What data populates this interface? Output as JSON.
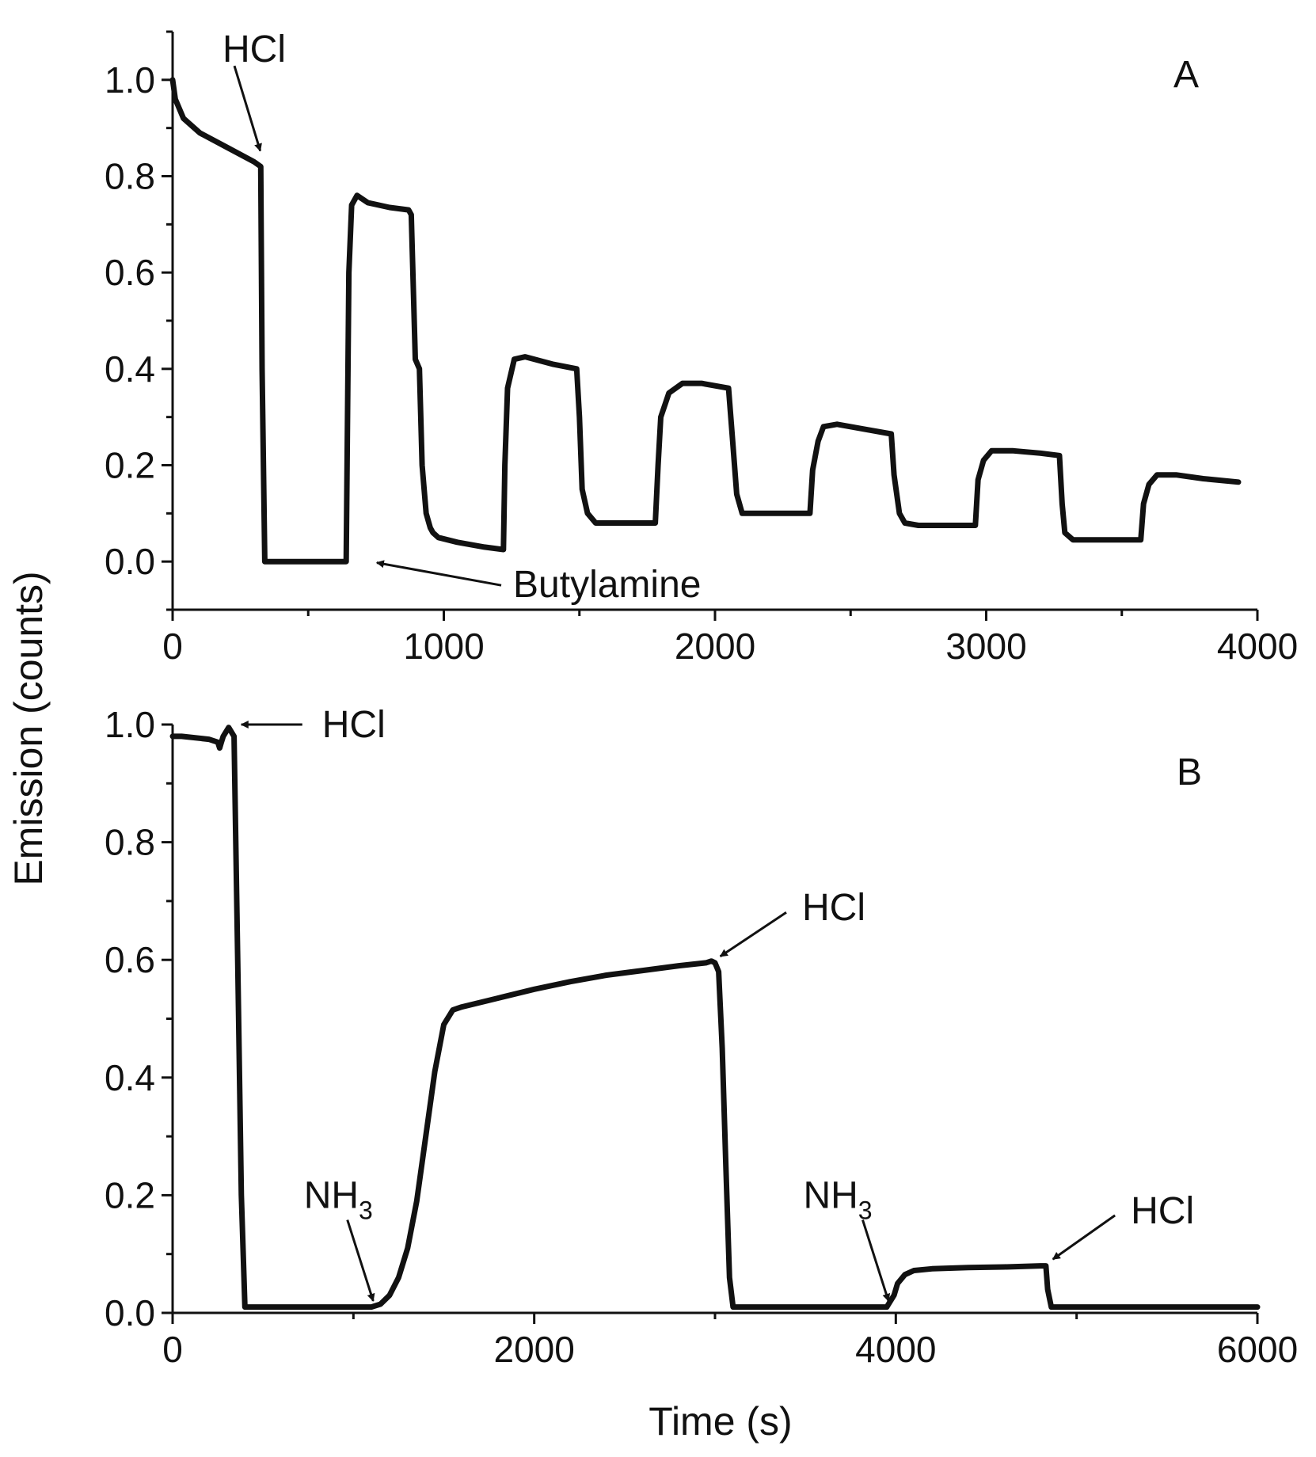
{
  "figure": {
    "y_axis_title": "Emission (counts)",
    "x_axis_title": "Time (s)"
  },
  "chart_data": [
    {
      "type": "line",
      "panel_label": "A",
      "xlim": [
        0,
        4000
      ],
      "ylim": [
        -0.1,
        1.1
      ],
      "x_ticks": [
        0,
        1000,
        2000,
        3000,
        4000
      ],
      "x_tick_labels": [
        "0",
        "1000",
        "2000",
        "3000",
        "4000"
      ],
      "y_ticks": [
        0.0,
        0.2,
        0.4,
        0.6,
        0.8,
        1.0
      ],
      "y_tick_labels": [
        "0.0",
        "0.2",
        "0.4",
        "0.6",
        "0.8",
        "1.0"
      ],
      "series": [
        {
          "name": "Emission",
          "x": [
            0,
            10,
            40,
            100,
            200,
            300,
            325,
            330,
            340,
            360,
            400,
            500,
            600,
            640,
            650,
            660,
            680,
            720,
            800,
            870,
            880,
            895,
            910,
            920,
            935,
            950,
            960,
            980,
            1050,
            1150,
            1220,
            1225,
            1235,
            1260,
            1300,
            1400,
            1490,
            1500,
            1510,
            1530,
            1560,
            1600,
            1700,
            1780,
            1790,
            1800,
            1830,
            1880,
            1950,
            2050,
            2065,
            2080,
            2100,
            2150,
            2250,
            2350,
            2360,
            2380,
            2400,
            2450,
            2550,
            2650,
            2660,
            2680,
            2700,
            2750,
            2850,
            2960,
            2970,
            2990,
            3020,
            3100,
            3200,
            3270,
            3280,
            3290,
            3320,
            3400,
            3500,
            3570,
            3580,
            3600,
            3630,
            3700,
            3800,
            3930
          ],
          "y": [
            1.0,
            0.96,
            0.92,
            0.89,
            0.86,
            0.83,
            0.82,
            0.4,
            0.0,
            0.0,
            0.0,
            0.0,
            0.0,
            0.0,
            0.6,
            0.74,
            0.76,
            0.745,
            0.735,
            0.73,
            0.72,
            0.42,
            0.4,
            0.2,
            0.1,
            0.07,
            0.06,
            0.05,
            0.04,
            0.03,
            0.025,
            0.2,
            0.36,
            0.42,
            0.425,
            0.41,
            0.4,
            0.3,
            0.15,
            0.1,
            0.08,
            0.08,
            0.08,
            0.08,
            0.2,
            0.3,
            0.35,
            0.37,
            0.37,
            0.36,
            0.25,
            0.14,
            0.1,
            0.1,
            0.1,
            0.1,
            0.19,
            0.25,
            0.28,
            0.285,
            0.275,
            0.265,
            0.18,
            0.1,
            0.08,
            0.075,
            0.075,
            0.075,
            0.17,
            0.21,
            0.23,
            0.23,
            0.225,
            0.22,
            0.12,
            0.06,
            0.045,
            0.045,
            0.045,
            0.045,
            0.12,
            0.16,
            0.18,
            0.18,
            0.172,
            0.165
          ]
        }
      ],
      "annotations": [
        {
          "text": "HCl",
          "sub": "",
          "points_to": {
            "x": 330,
            "y": 0.84
          }
        },
        {
          "text": "Butylamine",
          "sub": "",
          "points_to": {
            "x": 730,
            "y": 0.0
          }
        }
      ]
    },
    {
      "type": "line",
      "panel_label": "B",
      "xlim": [
        0,
        6000
      ],
      "ylim": [
        0.0,
        1.0
      ],
      "x_ticks": [
        0,
        2000,
        4000,
        6000
      ],
      "x_tick_labels": [
        "0",
        "2000",
        "4000",
        "6000"
      ],
      "y_ticks": [
        0.0,
        0.2,
        0.4,
        0.6,
        0.8,
        1.0
      ],
      "y_tick_labels": [
        "0.0",
        "0.2",
        "0.4",
        "0.6",
        "0.8",
        "1.0"
      ],
      "series": [
        {
          "name": "Emission",
          "x": [
            0,
            50,
            200,
            250,
            260,
            270,
            280,
            300,
            310,
            340,
            360,
            380,
            400,
            600,
            800,
            1000,
            1100,
            1150,
            1200,
            1250,
            1300,
            1350,
            1400,
            1450,
            1500,
            1550,
            1600,
            1800,
            2000,
            2200,
            2400,
            2600,
            2800,
            2950,
            2980,
            3000,
            3020,
            3040,
            3060,
            3080,
            3100,
            3200,
            3500,
            3800,
            3950,
            3990,
            4010,
            4050,
            4100,
            4200,
            4400,
            4600,
            4800,
            4830,
            4840,
            4860,
            5000,
            5500,
            6000
          ],
          "y": [
            0.98,
            0.98,
            0.975,
            0.97,
            0.96,
            0.97,
            0.98,
            0.99,
            0.995,
            0.98,
            0.6,
            0.2,
            0.01,
            0.01,
            0.01,
            0.01,
            0.01,
            0.015,
            0.03,
            0.06,
            0.11,
            0.19,
            0.3,
            0.41,
            0.49,
            0.515,
            0.52,
            0.535,
            0.55,
            0.563,
            0.574,
            0.582,
            0.59,
            0.595,
            0.598,
            0.595,
            0.58,
            0.45,
            0.25,
            0.06,
            0.01,
            0.01,
            0.01,
            0.01,
            0.01,
            0.03,
            0.05,
            0.065,
            0.072,
            0.075,
            0.077,
            0.078,
            0.08,
            0.08,
            0.04,
            0.01,
            0.01,
            0.01,
            0.01
          ]
        }
      ],
      "annotations": [
        {
          "text": "HCl",
          "sub": "",
          "points_to": {
            "x": 345,
            "y": 1.0
          }
        },
        {
          "text": "NH",
          "sub": "3",
          "points_to": {
            "x": 1120,
            "y": 0.01
          }
        },
        {
          "text": "HCl",
          "sub": "",
          "points_to": {
            "x": 3000,
            "y": 0.6
          }
        },
        {
          "text": "NH",
          "sub": "3",
          "points_to": {
            "x": 3970,
            "y": 0.01
          }
        },
        {
          "text": "HCl",
          "sub": "",
          "points_to": {
            "x": 4840,
            "y": 0.085
          }
        }
      ]
    }
  ]
}
